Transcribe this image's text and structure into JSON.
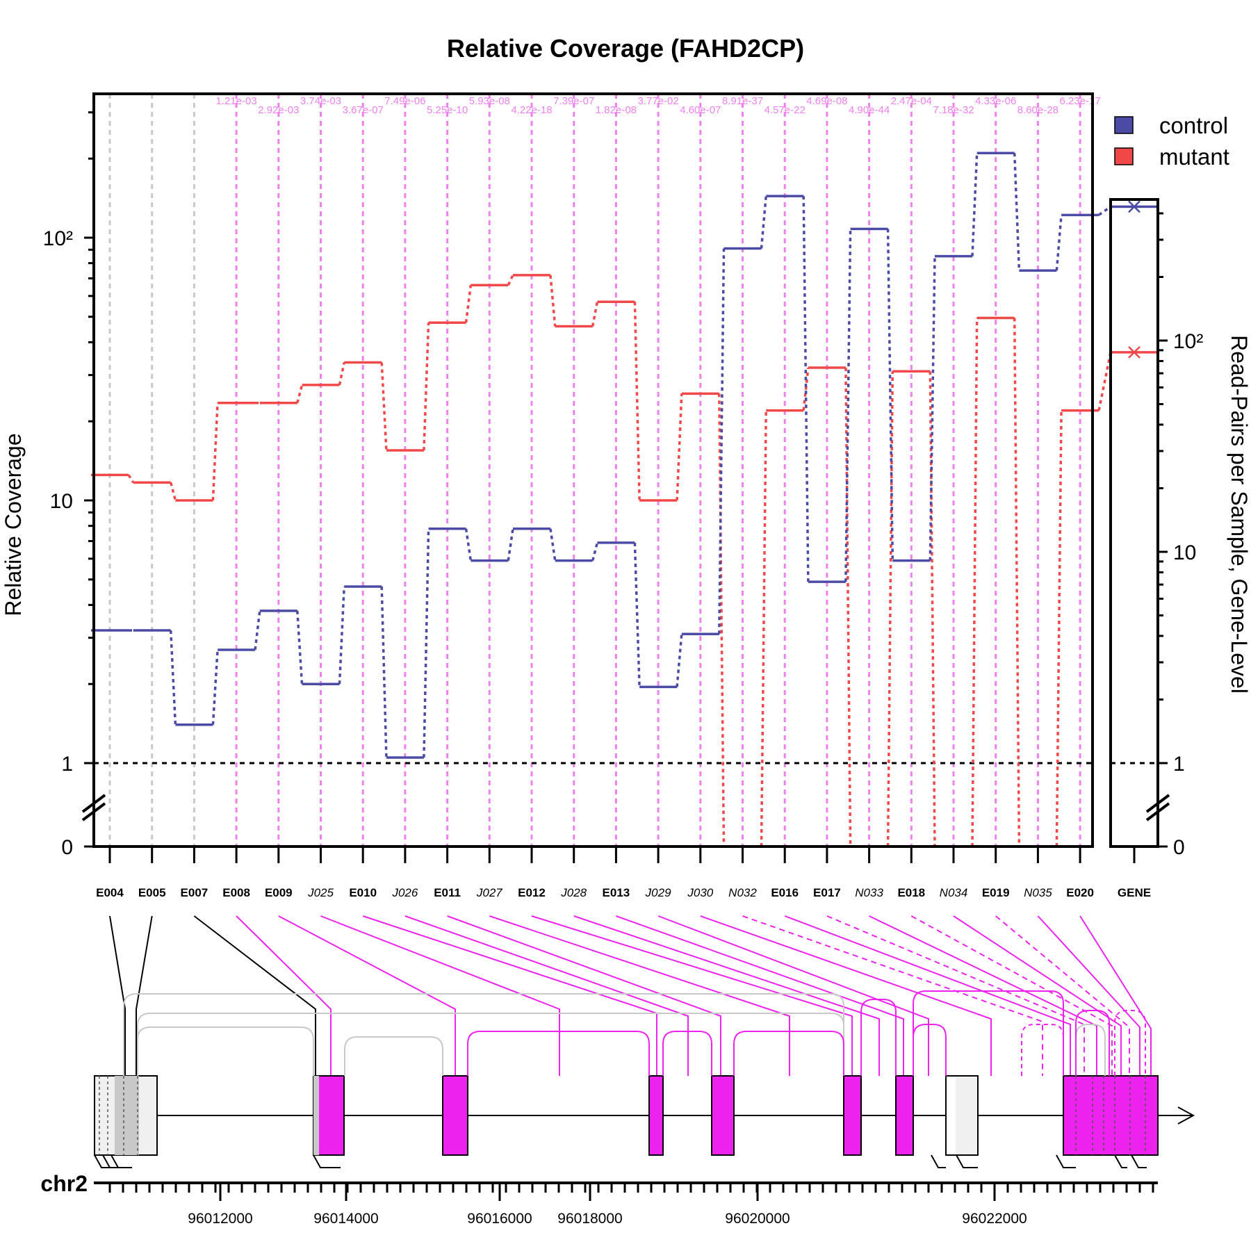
{
  "chart_data": {
    "type": "line",
    "title": "Relative Coverage (FAHD2CP)",
    "ylabel": "Relative Coverage",
    "ylabel_right": "Read-Pairs per Sample, Gene-Level",
    "y_scale": "log (broken axis at 0)",
    "y_ticks": [
      "0",
      "1",
      "10",
      "10²"
    ],
    "y_ticks_right": [
      "0",
      "1",
      "10",
      "10²"
    ],
    "gene_label": "GENE",
    "features": [
      {
        "id": "E004",
        "type": "exon",
        "control": 3.2,
        "mutant": 12.5,
        "pvalue": ""
      },
      {
        "id": "E005",
        "type": "exon",
        "control": 3.2,
        "mutant": 11.7,
        "pvalue": ""
      },
      {
        "id": "E007",
        "type": "exon",
        "control": 1.4,
        "mutant": 10.0,
        "pvalue": ""
      },
      {
        "id": "E008",
        "type": "exon",
        "control": 2.7,
        "mutant": 23.5,
        "pvalue": "1.21e-03"
      },
      {
        "id": "E009",
        "type": "exon",
        "control": 3.8,
        "mutant": 23.5,
        "pvalue": "2.92e-03"
      },
      {
        "id": "J025",
        "type": "junction",
        "control": 2.0,
        "mutant": 27.5,
        "pvalue": "3.74e-03"
      },
      {
        "id": "E010",
        "type": "exon",
        "control": 4.7,
        "mutant": 33.5,
        "pvalue": "3.67e-07"
      },
      {
        "id": "J026",
        "type": "junction",
        "control": 1.05,
        "mutant": 15.5,
        "pvalue": "7.49e-06"
      },
      {
        "id": "E011",
        "type": "exon",
        "control": 7.8,
        "mutant": 47.5,
        "pvalue": "5.25e-10"
      },
      {
        "id": "J027",
        "type": "junction",
        "control": 5.9,
        "mutant": 66.0,
        "pvalue": "5.93e-08"
      },
      {
        "id": "E012",
        "type": "exon",
        "control": 7.8,
        "mutant": 72.0,
        "pvalue": "4.22e-18"
      },
      {
        "id": "J028",
        "type": "junction",
        "control": 5.9,
        "mutant": 46.0,
        "pvalue": "7.39e-07"
      },
      {
        "id": "E013",
        "type": "exon",
        "control": 6.9,
        "mutant": 57.0,
        "pvalue": "1.82e-08"
      },
      {
        "id": "J029",
        "type": "junction",
        "control": 1.95,
        "mutant": 10.0,
        "pvalue": "3.77e-02"
      },
      {
        "id": "J030",
        "type": "junction",
        "control": 3.1,
        "mutant": 25.5,
        "pvalue": "4.60e-07"
      },
      {
        "id": "N032",
        "type": "novel",
        "control": 91.0,
        "mutant": 0,
        "pvalue": "8.91e-37"
      },
      {
        "id": "E016",
        "type": "exon",
        "control": 144.0,
        "mutant": 22.0,
        "pvalue": "4.57e-22"
      },
      {
        "id": "E017",
        "type": "exon",
        "control": 4.9,
        "mutant": 32.0,
        "pvalue": "4.69e-08"
      },
      {
        "id": "N033",
        "type": "novel",
        "control": 108.0,
        "mutant": 0,
        "pvalue": "4.90e-44"
      },
      {
        "id": "E018",
        "type": "exon",
        "control": 5.9,
        "mutant": 31.0,
        "pvalue": "2.47e-04"
      },
      {
        "id": "N034",
        "type": "novel",
        "control": 85.0,
        "mutant": 0,
        "pvalue": "7.18e-32"
      },
      {
        "id": "E019",
        "type": "exon",
        "control": 210.0,
        "mutant": 49.5,
        "pvalue": "4.33e-06"
      },
      {
        "id": "N035",
        "type": "novel",
        "control": 75.0,
        "mutant": 0,
        "pvalue": "8.60e-28"
      },
      {
        "id": "E020",
        "type": "exon",
        "control": 122.0,
        "mutant": 22.0,
        "pvalue": "6.23e-17"
      }
    ],
    "gene_level": {
      "control": 430,
      "mutant": 88,
      "y_ticks_right": [
        "0",
        "1",
        "10",
        "10²"
      ]
    },
    "legend": [
      {
        "name": "control",
        "color": "#4b4ba6"
      },
      {
        "name": "mutant",
        "color": "#f04848"
      }
    ],
    "legend_position": "top-right",
    "colors": {
      "control": "#4b4ba6",
      "mutant": "#f04848",
      "significant": "#f080f0",
      "nonsignificant": "#c8c8c8",
      "exon_fill": "#ee22ee",
      "frame": "#000000"
    }
  },
  "genome": {
    "chromosome": "chr2",
    "tick_labels": [
      "96012000",
      "96014000",
      "96016000",
      "96018000",
      "96020000",
      "96022000"
    ]
  }
}
